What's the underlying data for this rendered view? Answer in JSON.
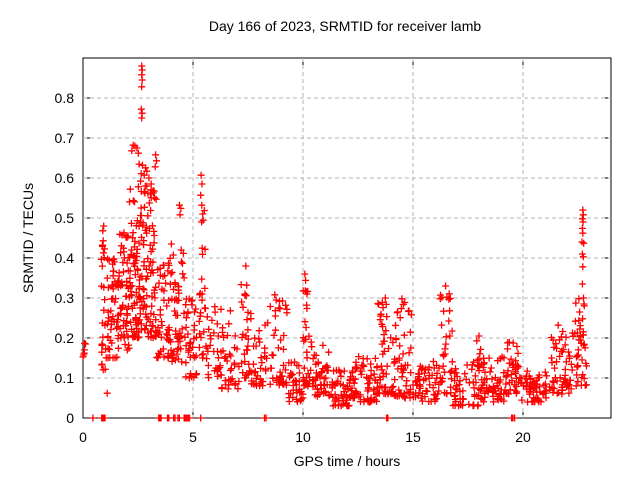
{
  "chart_data": {
    "type": "scatter",
    "title": "Day 166 of 2023, SRMTID for receiver lamb",
    "xlabel": "GPS time / hours",
    "ylabel": "SRMTID / TECUs",
    "xlim": [
      0,
      24
    ],
    "ylim": [
      0,
      0.9
    ],
    "x_ticks": [
      {
        "v": 0,
        "label": "0"
      },
      {
        "v": 5,
        "label": "5"
      },
      {
        "v": 10,
        "label": "10"
      },
      {
        "v": 15,
        "label": "15"
      },
      {
        "v": 20,
        "label": "20"
      }
    ],
    "y_ticks": [
      {
        "v": 0,
        "label": "0"
      },
      {
        "v": 0.1,
        "label": "0.1"
      },
      {
        "v": 0.2,
        "label": "0.2"
      },
      {
        "v": 0.3,
        "label": "0.3"
      },
      {
        "v": 0.4,
        "label": "0.4"
      },
      {
        "v": 0.5,
        "label": "0.5"
      },
      {
        "v": 0.6,
        "label": "0.6"
      },
      {
        "v": 0.7,
        "label": "0.7"
      },
      {
        "v": 0.8,
        "label": "0.8"
      }
    ],
    "grid": "dashed",
    "legend": "none",
    "marker": "plus",
    "marker_color": "#ff0000",
    "grid_color": "#b4b4b4",
    "axis_color": "#000000",
    "seed": 7,
    "point_bands": [
      [
        0.0,
        0.12,
        6,
        0.15,
        0.2,
        1.0
      ],
      [
        0.82,
        1.05,
        22,
        0.12,
        0.44,
        1.6
      ],
      [
        1.05,
        1.55,
        48,
        0.15,
        0.4,
        1.7
      ],
      [
        1.55,
        2.1,
        62,
        0.17,
        0.47,
        1.7
      ],
      [
        2.1,
        2.55,
        65,
        0.2,
        0.58,
        1.8
      ],
      [
        2.55,
        2.85,
        45,
        0.22,
        0.65,
        1.5
      ],
      [
        2.85,
        3.35,
        60,
        0.2,
        0.6,
        1.8
      ],
      [
        3.35,
        4.0,
        48,
        0.15,
        0.4,
        1.6
      ],
      [
        4.0,
        4.6,
        50,
        0.14,
        0.45,
        1.7
      ],
      [
        4.6,
        5.2,
        38,
        0.1,
        0.3,
        1.6
      ],
      [
        5.25,
        5.55,
        22,
        0.15,
        0.57,
        1.6
      ],
      [
        5.55,
        6.3,
        34,
        0.1,
        0.3,
        1.7
      ],
      [
        6.3,
        7.1,
        34,
        0.07,
        0.24,
        1.6
      ],
      [
        7.1,
        7.65,
        28,
        0.1,
        0.34,
        1.7
      ],
      [
        7.65,
        8.5,
        36,
        0.08,
        0.26,
        1.8
      ],
      [
        8.5,
        9.35,
        44,
        0.08,
        0.3,
        1.9
      ],
      [
        9.35,
        10.0,
        36,
        0.04,
        0.15,
        1.5
      ],
      [
        10.0,
        10.3,
        28,
        0.08,
        0.32,
        1.5
      ],
      [
        10.3,
        11.3,
        50,
        0.05,
        0.19,
        1.6
      ],
      [
        11.3,
        12.1,
        46,
        0.03,
        0.12,
        1.4
      ],
      [
        12.1,
        12.6,
        30,
        0.05,
        0.17,
        1.6
      ],
      [
        12.6,
        13.4,
        46,
        0.04,
        0.15,
        1.6
      ],
      [
        13.4,
        14.1,
        46,
        0.06,
        0.29,
        1.9
      ],
      [
        14.1,
        15.0,
        56,
        0.05,
        0.29,
        1.9
      ],
      [
        15.0,
        16.2,
        56,
        0.04,
        0.15,
        1.5
      ],
      [
        16.2,
        16.8,
        34,
        0.06,
        0.32,
        1.8
      ],
      [
        16.8,
        18.2,
        60,
        0.03,
        0.14,
        1.4
      ],
      [
        17.9,
        18.15,
        8,
        0.12,
        0.21,
        1.2
      ],
      [
        18.2,
        19.2,
        50,
        0.04,
        0.16,
        1.5
      ],
      [
        19.2,
        19.9,
        40,
        0.06,
        0.19,
        1.5
      ],
      [
        19.9,
        21.2,
        62,
        0.04,
        0.12,
        1.4
      ],
      [
        21.2,
        22.2,
        52,
        0.06,
        0.23,
        1.6
      ],
      [
        22.2,
        22.9,
        46,
        0.08,
        0.3,
        1.5
      ]
    ],
    "outlier_points": [
      [
        2.67,
        0.88
      ],
      [
        2.69,
        0.87
      ],
      [
        2.67,
        0.858
      ],
      [
        2.69,
        0.845
      ],
      [
        2.67,
        0.828
      ],
      [
        2.65,
        0.772
      ],
      [
        2.69,
        0.762
      ],
      [
        2.67,
        0.75
      ],
      [
        2.28,
        0.682
      ],
      [
        2.36,
        0.68
      ],
      [
        2.45,
        0.675
      ],
      [
        2.22,
        0.668
      ],
      [
        2.52,
        0.662
      ],
      [
        3.3,
        0.658
      ],
      [
        3.34,
        0.643
      ],
      [
        3.28,
        0.628
      ],
      [
        2.9,
        0.617
      ],
      [
        2.78,
        0.607
      ],
      [
        3.0,
        0.6
      ],
      [
        2.62,
        0.592
      ],
      [
        3.1,
        0.585
      ],
      [
        2.52,
        0.578
      ],
      [
        3.18,
        0.568
      ],
      [
        2.95,
        0.562
      ],
      [
        5.37,
        0.607
      ],
      [
        5.41,
        0.585
      ],
      [
        5.35,
        0.557
      ],
      [
        5.4,
        0.532
      ],
      [
        5.44,
        0.51
      ],
      [
        5.39,
        0.49
      ],
      [
        4.38,
        0.532
      ],
      [
        4.45,
        0.524
      ],
      [
        4.41,
        0.508
      ],
      [
        0.94,
        0.48
      ],
      [
        0.9,
        0.468
      ],
      [
        0.92,
        0.443
      ],
      [
        0.88,
        0.432
      ],
      [
        7.4,
        0.38
      ],
      [
        7.44,
        0.332
      ],
      [
        7.36,
        0.31
      ],
      [
        8.72,
        0.308
      ],
      [
        8.78,
        0.295
      ],
      [
        10.08,
        0.36
      ],
      [
        10.12,
        0.344
      ],
      [
        10.1,
        0.318
      ],
      [
        6.7,
        0.268
      ],
      [
        1.1,
        0.062
      ],
      [
        13.74,
        0.3
      ],
      [
        13.78,
        0.284
      ],
      [
        14.5,
        0.298
      ],
      [
        14.56,
        0.284
      ],
      [
        14.82,
        0.268
      ],
      [
        16.48,
        0.33
      ],
      [
        16.54,
        0.302
      ],
      [
        18.0,
        0.205
      ],
      [
        21.6,
        0.232
      ],
      [
        22.72,
        0.52
      ],
      [
        22.74,
        0.508
      ],
      [
        22.7,
        0.498
      ],
      [
        22.73,
        0.49
      ],
      [
        22.7,
        0.474
      ],
      [
        22.72,
        0.462
      ],
      [
        22.68,
        0.44
      ],
      [
        22.76,
        0.437
      ],
      [
        22.7,
        0.41
      ],
      [
        22.74,
        0.403
      ],
      [
        22.72,
        0.378
      ],
      [
        22.7,
        0.335
      ],
      [
        22.75,
        0.3
      ],
      [
        22.77,
        0.285
      ]
    ],
    "zero_points": [
      0.45,
      0.85,
      0.9,
      0.95,
      1.0,
      3.44,
      3.5,
      3.55,
      3.84,
      3.9,
      4.12,
      4.18,
      4.32,
      4.38,
      4.6,
      4.66,
      4.72,
      4.78,
      4.84,
      5.35,
      8.25,
      8.32,
      13.8,
      13.86,
      19.48,
      19.54,
      19.62
    ]
  }
}
